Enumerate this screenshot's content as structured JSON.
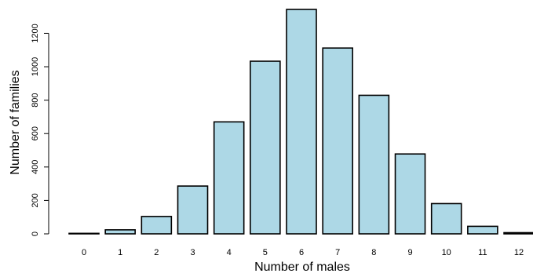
{
  "chart_data": {
    "type": "bar",
    "categories": [
      "0",
      "1",
      "2",
      "3",
      "4",
      "5",
      "6",
      "7",
      "8",
      "9",
      "10",
      "11",
      "12"
    ],
    "values": [
      3,
      24,
      104,
      286,
      670,
      1033,
      1343,
      1112,
      829,
      478,
      181,
      45,
      7
    ],
    "title": "",
    "xlabel": "Number of males",
    "ylabel": "Number of families",
    "ylim": [
      0,
      1343
    ],
    "yticks": [
      0,
      200,
      400,
      600,
      800,
      1000,
      1200
    ],
    "bar_color": "#add8e6",
    "grid": false,
    "legend": "none"
  }
}
